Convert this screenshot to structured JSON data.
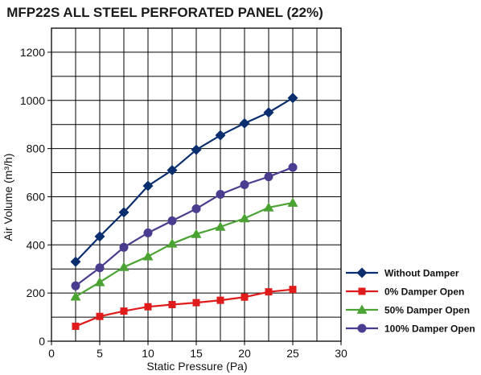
{
  "chart_data": {
    "type": "line",
    "title": "MFP22S ALL STEEL PERFORATED PANEL (22%)",
    "xlabel": "Static Pressure (Pa)",
    "ylabel": "Air Volume (m³/h)",
    "xlim": [
      0,
      30
    ],
    "ylim": [
      0,
      1300
    ],
    "xticks": [
      0,
      5,
      10,
      15,
      20,
      25,
      30
    ],
    "yticks": [
      0,
      200,
      400,
      600,
      800,
      1000,
      1200
    ],
    "grid": true,
    "legend_position": "bottom-right",
    "x": [
      2.5,
      5,
      7.5,
      10,
      12.5,
      15,
      17.5,
      20,
      22.5,
      25
    ],
    "series": [
      {
        "name": "Without Damper",
        "color": "#0b2f6e",
        "marker": "diamond",
        "values": [
          330,
          435,
          535,
          645,
          710,
          795,
          855,
          905,
          950,
          1010
        ]
      },
      {
        "name": "0% Damper Open",
        "color": "#e01b1b",
        "marker": "square",
        "values": [
          62,
          103,
          125,
          143,
          152,
          160,
          170,
          183,
          205,
          215
        ]
      },
      {
        "name": "50% Damper Open",
        "color": "#4aa332",
        "marker": "triangle",
        "values": [
          185,
          245,
          308,
          352,
          405,
          445,
          475,
          510,
          555,
          575
        ]
      },
      {
        "name": "100% Damper Open",
        "color": "#4a3d8f",
        "marker": "circle",
        "values": [
          230,
          305,
          390,
          450,
          500,
          550,
          610,
          650,
          683,
          722
        ]
      }
    ]
  }
}
